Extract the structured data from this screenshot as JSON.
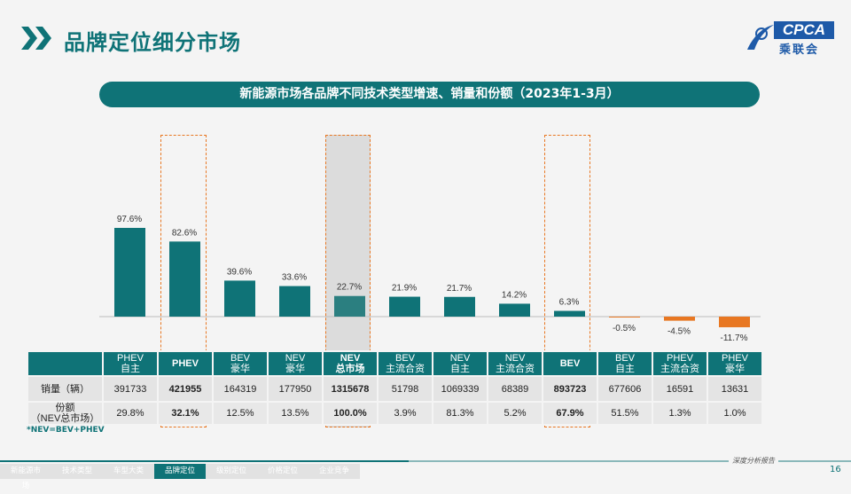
{
  "header": {
    "title": "品牌定位细分市场",
    "logo_text": "CPCA",
    "logo_cn": "乘联会"
  },
  "banner": "新能源市场各品牌不同技术类型增速、销量和份额（2023年1-3月）",
  "chart_data": {
    "type": "bar",
    "categories": [
      "PHEV 自主",
      "PHEV",
      "BEV 豪华",
      "NEV 豪华",
      "NEV 总市场",
      "BEV 主流合资",
      "NEV 自主",
      "NEV 主流合资",
      "BEV",
      "BEV 自主",
      "PHEV 主流合资",
      "PHEV 豪华"
    ],
    "values": [
      97.6,
      82.6,
      39.6,
      33.6,
      22.7,
      21.9,
      21.7,
      14.2,
      6.3,
      -0.5,
      -4.5,
      -11.7
    ],
    "data_labels": [
      "97.6%",
      "82.6%",
      "39.6%",
      "33.6%",
      "22.7%",
      "21.9%",
      "21.7%",
      "14.2%",
      "6.3%",
      "-0.5%",
      "-4.5%",
      "-11.7%"
    ],
    "unit": "%",
    "colors": {
      "positive": "#0f7377",
      "negative": "#e87722",
      "highlight": "#2b7f80"
    },
    "highlighted": [
      "PHEV",
      "NEV 总市场",
      "BEV"
    ]
  },
  "table": {
    "headers": [
      [
        "PHEV",
        "自主"
      ],
      [
        "PHEV",
        ""
      ],
      [
        "BEV",
        "豪华"
      ],
      [
        "NEV",
        "豪华"
      ],
      [
        "NEV",
        "总市场"
      ],
      [
        "BEV",
        "主流合资"
      ],
      [
        "NEV",
        "自主"
      ],
      [
        "NEV",
        "主流合资"
      ],
      [
        "BEV",
        ""
      ],
      [
        "BEV",
        "自主"
      ],
      [
        "PHEV",
        "主流合资"
      ],
      [
        "PHEV",
        "豪华"
      ]
    ],
    "row_labels": [
      "销量（辆）",
      "份额",
      "（NEV总市场）"
    ],
    "sales": [
      "391733",
      "421955",
      "164319",
      "177950",
      "1315678",
      "51798",
      "1069339",
      "68389",
      "893723",
      "677606",
      "16591",
      "13631"
    ],
    "share": [
      "29.8%",
      "32.1%",
      "12.5%",
      "13.5%",
      "100.0%",
      "3.9%",
      "81.3%",
      "5.2%",
      "67.9%",
      "51.5%",
      "1.3%",
      "1.0%"
    ]
  },
  "note": "*NEV=BEV+PHEV",
  "nav": [
    {
      "label": "新能源市场"
    },
    {
      "label": "技术类型"
    },
    {
      "label": "车型大类"
    },
    {
      "label": "品牌定位",
      "active": true
    },
    {
      "label": "级别定位"
    },
    {
      "label": "价格定位"
    },
    {
      "label": "企业竞争"
    }
  ],
  "footer": {
    "report": "深度分析报告",
    "page": "16"
  }
}
